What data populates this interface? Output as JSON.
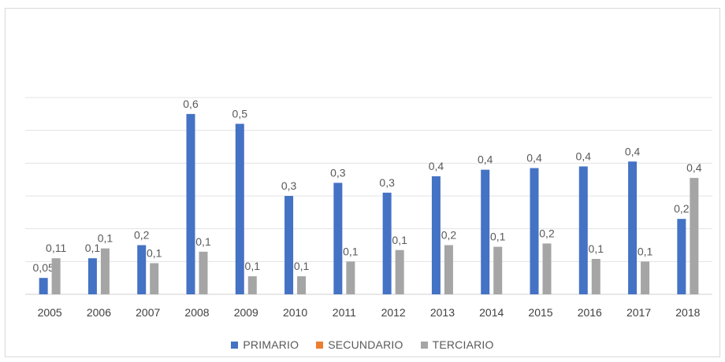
{
  "chart_data": {
    "type": "bar",
    "categories": [
      "2005",
      "2006",
      "2007",
      "2008",
      "2009",
      "2010",
      "2011",
      "2012",
      "2013",
      "2014",
      "2015",
      "2016",
      "2017",
      "2018"
    ],
    "series": [
      {
        "name": "PRIMARIO",
        "color": "#4472c4",
        "values": [
          0.05,
          0.1,
          0.2,
          0.6,
          0.5,
          0.3,
          0.3,
          0.3,
          0.4,
          0.4,
          0.4,
          0.4,
          0.4,
          0.2
        ],
        "estimated_heights": [
          0.05,
          0.11,
          0.15,
          0.55,
          0.52,
          0.3,
          0.34,
          0.31,
          0.36,
          0.38,
          0.385,
          0.39,
          0.405,
          0.23
        ],
        "labels": [
          "0,05",
          "0,1",
          "0,2",
          "0,6",
          "0,5",
          "0,3",
          "0,3",
          "0,3",
          "0,4",
          "0,4",
          "0,4",
          "0,4",
          "0,4",
          "0,2"
        ]
      },
      {
        "name": "SECUNDARIO",
        "color": "#ed7d31",
        "values": [
          0,
          0,
          0,
          0,
          0,
          0,
          0,
          0,
          0,
          0,
          0,
          0,
          0,
          0
        ],
        "labels": []
      },
      {
        "name": "TERCIARIO",
        "color": "#a5a5a5",
        "values": [
          0.11,
          0.1,
          0.1,
          0.1,
          0.1,
          0.1,
          0.1,
          0.1,
          0.2,
          0.1,
          0.2,
          0.1,
          0.1,
          0.4
        ],
        "estimated_heights": [
          0.11,
          0.14,
          0.095,
          0.13,
          0.055,
          0.055,
          0.1,
          0.135,
          0.15,
          0.145,
          0.155,
          0.108,
          0.1,
          0.355
        ],
        "labels": [
          "0,11",
          "0,1",
          "0,1",
          "0,1",
          "0,1",
          "0,1",
          "0,1",
          "0,1",
          "0,2",
          "0,1",
          "0,2",
          "0,1",
          "0,1",
          "0,4"
        ]
      }
    ],
    "ylim": [
      0,
      0.6
    ],
    "grid": true,
    "legend": "bottom",
    "title": "",
    "xlabel": "",
    "ylabel": ""
  }
}
